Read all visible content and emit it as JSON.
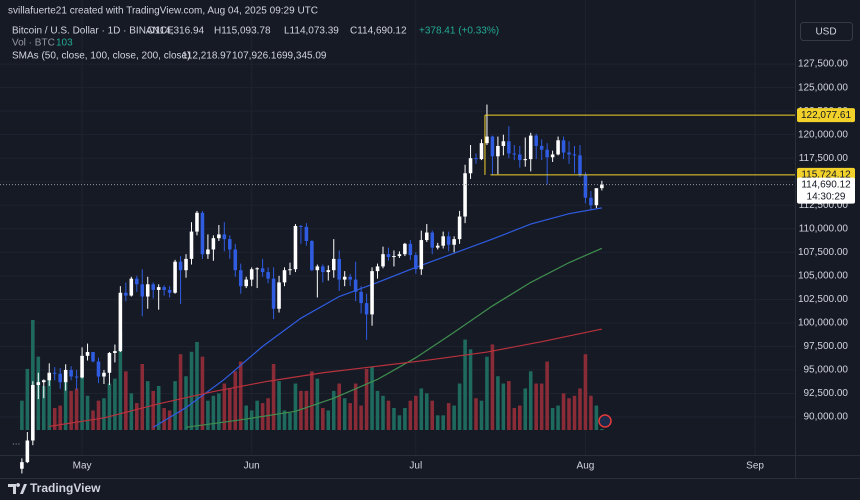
{
  "header": {
    "author": "svillafuerte21 created with TradingView.com, Aug 04, 2025 09:29 UTC"
  },
  "chart_data": {
    "type": "candlestick",
    "title": "Bitcoin / U.S. Dollar · 1D · BINANCE",
    "ohlc_labels": [
      "O114,316.94",
      "H115,093.78",
      "L114,073.39",
      "C114,690.12"
    ],
    "change_label": "+378.41 (+0.33%)",
    "volume_title": "Vol · BTC",
    "volume_value_label": "103",
    "sma_title": "SMAs (50, close, 100, close, 200, close)",
    "currency": "USD",
    "up_color": "#ffffff",
    "down_color": "#2f5ce0",
    "volume_up_color": "#1f6a5e",
    "volume_down_color": "#8a2c37",
    "xlim": [
      -4,
      141.3
    ],
    "xticks": [
      {
        "value": 11,
        "label": "May"
      },
      {
        "value": 42,
        "label": "Jun"
      },
      {
        "value": 72,
        "label": "Jul"
      },
      {
        "value": 103,
        "label": "Aug"
      },
      {
        "value": 134,
        "label": "Sep"
      }
    ],
    "ylim": [
      85960,
      134310
    ],
    "yticks": [
      {
        "value": 90000,
        "label": "90,000.00"
      },
      {
        "value": 92500,
        "label": "92,500.00"
      },
      {
        "value": 95000,
        "label": "95,000.00"
      },
      {
        "value": 97500,
        "label": "97,500.00"
      },
      {
        "value": 100000,
        "label": "100,000.00"
      },
      {
        "value": 102500,
        "label": "102,500.00"
      },
      {
        "value": 105000,
        "label": "105,000.00"
      },
      {
        "value": 107500,
        "label": "107,500.00"
      },
      {
        "value": 110000,
        "label": "110,000.00"
      },
      {
        "value": 112500,
        "label": "112,500.00"
      },
      {
        "value": 115000,
        "label": "115,000.00"
      },
      {
        "value": 117500,
        "label": "117,500.00"
      },
      {
        "value": 120000,
        "label": "120,000.00"
      },
      {
        "value": 122500,
        "label": "122,500.00"
      },
      {
        "value": 125000,
        "label": "125,000.00"
      },
      {
        "value": 127500,
        "label": "127,500.00"
      }
    ],
    "grid": true,
    "candles": [
      [
        84500,
        85600,
        84000,
        85200
      ],
      [
        85200,
        88400,
        85100,
        87500
      ],
      [
        87500,
        93800,
        87000,
        93400
      ],
      [
        93400,
        94700,
        91900,
        93700
      ],
      [
        93700,
        94000,
        92000,
        93900
      ],
      [
        93900,
        95700,
        93300,
        94700
      ],
      [
        94700,
        95300,
        93900,
        94600
      ],
      [
        94600,
        95200,
        93000,
        93700
      ],
      [
        93700,
        95600,
        92800,
        95000
      ],
      [
        95000,
        95400,
        93900,
        94300
      ],
      [
        94300,
        95000,
        92900,
        94200
      ],
      [
        94200,
        97400,
        94100,
        96500
      ],
      [
        96500,
        97800,
        96000,
        96900
      ],
      [
        96900,
        96900,
        95800,
        95900
      ],
      [
        95900,
        96300,
        93600,
        94300
      ],
      [
        94300,
        95000,
        93500,
        94700
      ],
      [
        94700,
        96900,
        93400,
        96800
      ],
      [
        96800,
        97700,
        95800,
        97000
      ],
      [
        97000,
        103900,
        96900,
        103200
      ],
      [
        103200,
        104300,
        102300,
        102900
      ],
      [
        102900,
        104900,
        102800,
        104700
      ],
      [
        104700,
        105000,
        103300,
        104100
      ],
      [
        104100,
        105700,
        100700,
        102800
      ],
      [
        102800,
        104900,
        101500,
        104100
      ],
      [
        104100,
        104300,
        102600,
        103500
      ],
      [
        103500,
        104100,
        101400,
        103800
      ],
      [
        103800,
        104000,
        102900,
        103500
      ],
      [
        103500,
        103900,
        102700,
        103200
      ],
      [
        103200,
        106700,
        103100,
        106500
      ],
      [
        106500,
        107100,
        102000,
        105600
      ],
      [
        105600,
        107300,
        104800,
        106800
      ],
      [
        106800,
        110700,
        106200,
        109700
      ],
      [
        109700,
        111900,
        109300,
        111700
      ],
      [
        111700,
        111900,
        106800,
        107300
      ],
      [
        107300,
        109400,
        106800,
        107800
      ],
      [
        107800,
        109300,
        106600,
        109000
      ],
      [
        109000,
        110400,
        108700,
        109400
      ],
      [
        109400,
        110700,
        107600,
        108900
      ],
      [
        108900,
        109300,
        106800,
        107800
      ],
      [
        107800,
        108400,
        104900,
        105600
      ],
      [
        105600,
        106300,
        103100,
        103900
      ],
      [
        103900,
        104900,
        103700,
        104600
      ],
      [
        104600,
        105900,
        103900,
        105700
      ],
      [
        105700,
        105900,
        103700,
        105800
      ],
      [
        105800,
        106800,
        104900,
        105400
      ],
      [
        105400,
        105900,
        104200,
        104700
      ],
      [
        104700,
        105900,
        100400,
        101500
      ],
      [
        101500,
        105000,
        101100,
        104300
      ],
      [
        104300,
        105900,
        103900,
        105600
      ],
      [
        105600,
        106400,
        105100,
        105700
      ],
      [
        105700,
        110500,
        105400,
        110300
      ],
      [
        110300,
        110400,
        108400,
        110200
      ],
      [
        110200,
        110600,
        108200,
        108700
      ],
      [
        108700,
        108800,
        105500,
        105600
      ],
      [
        105600,
        106200,
        102700,
        106000
      ],
      [
        106000,
        106200,
        104300,
        105400
      ],
      [
        105400,
        106100,
        104500,
        105600
      ],
      [
        105600,
        108900,
        104800,
        106800
      ],
      [
        106800,
        107700,
        103400,
        104600
      ],
      [
        104600,
        105500,
        103900,
        104900
      ],
      [
        104900,
        105200,
        103900,
        104600
      ],
      [
        104600,
        106500,
        102300,
        103300
      ],
      [
        103300,
        103900,
        101000,
        102100
      ],
      [
        102100,
        103100,
        98200,
        100900
      ],
      [
        100900,
        105900,
        99700,
        105500
      ],
      [
        105500,
        106300,
        104700,
        106000
      ],
      [
        106000,
        108100,
        105800,
        107300
      ],
      [
        107300,
        108000,
        106600,
        107000
      ],
      [
        107000,
        107700,
        106000,
        107100
      ],
      [
        107100,
        107600,
        106900,
        107300
      ],
      [
        107300,
        108500,
        107100,
        108400
      ],
      [
        108400,
        108800,
        106700,
        107200
      ],
      [
        107200,
        107500,
        105200,
        105700
      ],
      [
        105700,
        109800,
        105100,
        108800
      ],
      [
        108800,
        110500,
        108600,
        109600
      ],
      [
        109600,
        109800,
        107300,
        108000
      ],
      [
        108000,
        108500,
        107800,
        108200
      ],
      [
        108200,
        109700,
        107900,
        109200
      ],
      [
        109200,
        109700,
        107600,
        108300
      ],
      [
        108300,
        109200,
        107500,
        108900
      ],
      [
        108900,
        111900,
        108400,
        111300
      ],
      [
        111300,
        116800,
        110600,
        115900
      ],
      [
        115900,
        118900,
        115300,
        117500
      ],
      [
        117500,
        118000,
        116900,
        117400
      ],
      [
        117400,
        119500,
        117300,
        119100
      ],
      [
        119100,
        123200,
        118900,
        119800
      ],
      [
        119800,
        119900,
        115700,
        117700
      ],
      [
        117700,
        119800,
        115800,
        118800
      ],
      [
        118800,
        120000,
        117800,
        119300
      ],
      [
        119300,
        120900,
        117500,
        118000
      ],
      [
        118000,
        118900,
        117300,
        117900
      ],
      [
        117900,
        118800,
        116500,
        117300
      ],
      [
        117300,
        119700,
        116600,
        117400
      ],
      [
        117400,
        120200,
        116100,
        119900
      ],
      [
        119900,
        120100,
        117400,
        118800
      ],
      [
        118800,
        119500,
        117300,
        118400
      ],
      [
        118400,
        119100,
        114700,
        117600
      ],
      [
        117600,
        118300,
        117100,
        117900
      ],
      [
        117900,
        119800,
        117800,
        119400
      ],
      [
        119400,
        119800,
        117400,
        118100
      ],
      [
        118100,
        119300,
        116900,
        117900
      ],
      [
        117900,
        118800,
        115900,
        117800
      ],
      [
        117800,
        118900,
        115500,
        115700
      ],
      [
        115700,
        116000,
        112700,
        113300
      ],
      [
        113300,
        114000,
        112000,
        112500
      ],
      [
        112500,
        114300,
        112200,
        114311.71
      ],
      [
        114316.94,
        115093.78,
        114073.39,
        114690.12
      ]
    ],
    "volumes": [
      12000,
      25000,
      45000,
      30000,
      18000,
      22000,
      9000,
      10000,
      20000,
      16000,
      17000,
      22000,
      14000,
      8000,
      12000,
      13000,
      19000,
      21000,
      40000,
      24000,
      15000,
      11000,
      27000,
      20000,
      16000,
      18000,
      9000,
      8000,
      20000,
      31000,
      22000,
      32000,
      36000,
      30000,
      12000,
      14000,
      15000,
      19000,
      17000,
      24000,
      28000,
      10000,
      8000,
      12000,
      11000,
      13000,
      27000,
      20000,
      8000,
      7000,
      19000,
      16000,
      16000,
      24000,
      21000,
      9000,
      8000,
      16000,
      19000,
      13000,
      11000,
      19000,
      10000,
      25000,
      26000,
      16000,
      14000,
      12000,
      9000,
      6000,
      9000,
      12000,
      14000,
      17000,
      15000,
      12000,
      6000,
      6000,
      11000,
      10000,
      19000,
      37000,
      33000,
      13000,
      12000,
      30000,
      35000,
      22000,
      19000,
      20000,
      9000,
      10000,
      17000,
      24000,
      19000,
      19000,
      28000,
      9000,
      10000,
      15000,
      13000,
      14000,
      17000,
      31000,
      14000,
      10000,
      103
    ],
    "volume_ylim": [
      0,
      45000
    ],
    "series": [
      {
        "color": "#2f5ce0",
        "value_label": "112,218.97",
        "x": [
          24,
          30,
          37,
          44,
          51,
          58,
          65,
          72,
          79,
          86,
          93,
          100,
          106
        ],
        "values": [
          88900,
          91000,
          94000,
          97500,
          100500,
          102800,
          104300,
          105900,
          107400,
          108900,
          110500,
          111600,
          112218.97
        ]
      },
      {
        "color": "#3f8f4f",
        "value_label": "107,926.16",
        "x": [
          30,
          40,
          50,
          57,
          65,
          72,
          79,
          86,
          93,
          100,
          106
        ],
        "values": [
          88900,
          89700,
          90600,
          92000,
          94000,
          96300,
          99000,
          101800,
          104300,
          106400,
          107926.16
        ]
      },
      {
        "color": "#b8323d",
        "value_label": "99,345.09",
        "x": [
          5,
          15,
          25,
          35,
          45,
          55,
          65,
          75,
          85,
          95,
          106
        ],
        "values": [
          89000,
          89900,
          91400,
          92700,
          93800,
          94700,
          95400,
          96100,
          96900,
          98000,
          99345.09
        ]
      }
    ],
    "levels": [
      {
        "value": 122077.61,
        "label": "122,077.61",
        "start": 85
      },
      {
        "value": 115724.12,
        "label": "115,724.12",
        "start": 86
      }
    ],
    "level_color": "#f2d22a",
    "last_price_label": "114,690.12",
    "countdown": "14:30:29"
  },
  "footer": {
    "brand": "TradingView"
  }
}
